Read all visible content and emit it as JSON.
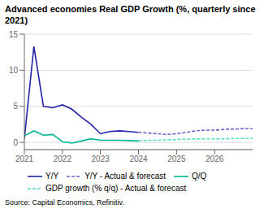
{
  "chart_data": {
    "type": "line",
    "title": "Advanced economies Real GDP Growth (%, quarterly since 2021)",
    "source": "Source: Capital Economics, Refinitiv.",
    "xlim": [
      2021.0,
      2027.0
    ],
    "xticks": [
      2021,
      2022,
      2023,
      2024,
      2025,
      2026
    ],
    "ylim": [
      -1,
      15
    ],
    "yticks": [
      0,
      5,
      10,
      15
    ],
    "grid": "y",
    "series": [
      {
        "name": "Y/Y",
        "color": "#2222aa",
        "line_style": "solid",
        "x": [
          2021.0,
          2021.25,
          2021.5,
          2021.75,
          2022.0,
          2022.25,
          2022.5,
          2022.75,
          2023.0,
          2023.25,
          2023.5,
          2023.75,
          2024.0
        ],
        "values": [
          0.5,
          13.3,
          5.0,
          4.8,
          5.2,
          4.6,
          3.5,
          2.5,
          1.2,
          1.5,
          1.6,
          1.5,
          1.4
        ]
      },
      {
        "name": "Y/Y - Actual & forecast",
        "color": "#6666cc",
        "line_style": "dashed",
        "x": [
          2024.0,
          2024.25,
          2024.5,
          2024.75,
          2025.0,
          2025.25,
          2025.5,
          2025.75,
          2026.0,
          2026.25,
          2026.5,
          2026.75,
          2027.0
        ],
        "values": [
          1.4,
          1.3,
          1.2,
          1.1,
          1.2,
          1.4,
          1.6,
          1.7,
          1.7,
          1.8,
          1.85,
          1.9,
          1.9
        ]
      },
      {
        "name": "Q/Q",
        "color": "#00b894",
        "line_style": "solid",
        "x": [
          2021.0,
          2021.25,
          2021.5,
          2021.75,
          2022.0,
          2022.25,
          2022.5,
          2022.75,
          2023.0,
          2023.25,
          2023.5,
          2023.75,
          2024.0
        ],
        "values": [
          0.9,
          1.6,
          1.0,
          1.1,
          0.1,
          -0.1,
          0.2,
          0.5,
          0.3,
          0.3,
          0.3,
          0.25,
          0.2
        ]
      },
      {
        "name": "GDP growth (% q/q) - Actual & forecast",
        "color": "#55ddc8",
        "line_style": "dashed",
        "x": [
          2024.0,
          2024.25,
          2024.5,
          2024.75,
          2025.0,
          2025.25,
          2025.5,
          2025.75,
          2026.0,
          2026.25,
          2026.5,
          2026.75,
          2027.0
        ],
        "values": [
          0.2,
          0.3,
          0.3,
          0.35,
          0.4,
          0.45,
          0.5,
          0.5,
          0.5,
          0.5,
          0.55,
          0.55,
          0.55
        ]
      }
    ]
  }
}
